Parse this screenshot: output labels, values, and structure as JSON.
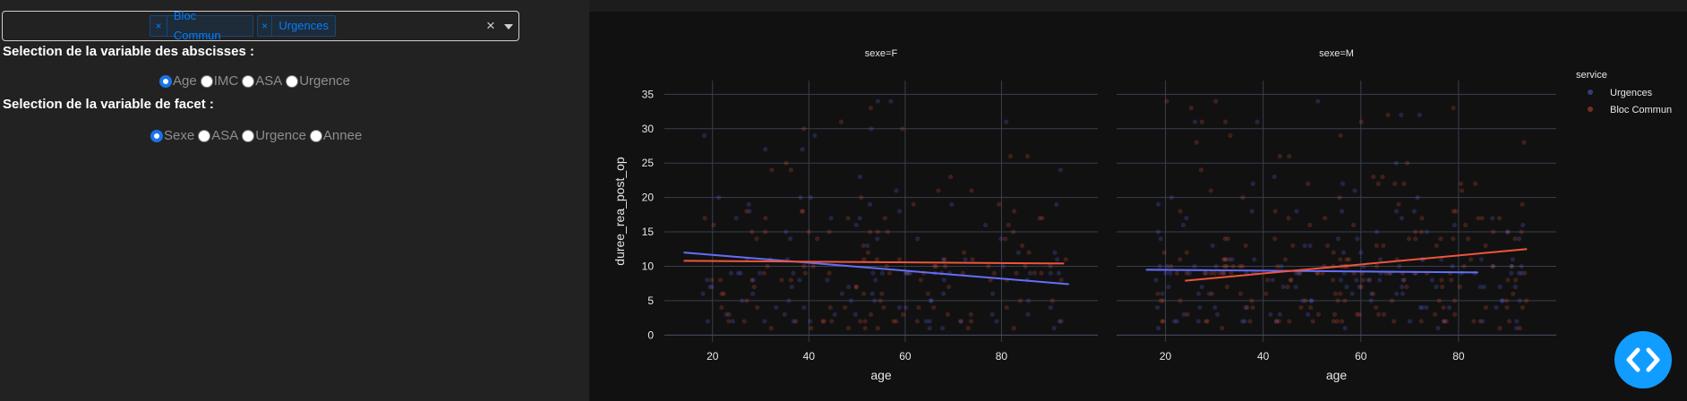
{
  "dropdown": {
    "selected": [
      {
        "label": "Bloc Commun",
        "remove": "×"
      },
      {
        "label": "Urgences",
        "remove": "×"
      }
    ],
    "clear": "×"
  },
  "abscissa": {
    "heading": "Selection de la variable des abscisses :",
    "options": [
      "Age",
      "IMC",
      "ASA",
      "Urgence"
    ],
    "selected": "Age"
  },
  "facet": {
    "heading": "Selection de la variable de facet :",
    "options": [
      "Sexe",
      "ASA",
      "Urgence",
      "Annee"
    ],
    "selected": "Sexe"
  },
  "colors": {
    "urgences": "#636efa",
    "bloc_commun": "#ef553b",
    "fab": "#119dff"
  },
  "chart_data": {
    "type": "scatter",
    "facets": [
      "sexe=F",
      "sexe=M"
    ],
    "xlabel": "age",
    "ylabel": "duree_rea_post_op",
    "xticks": [
      20,
      40,
      60,
      80
    ],
    "yticks": [
      0,
      5,
      10,
      15,
      20,
      25,
      30,
      35
    ],
    "xlim": [
      10,
      100
    ],
    "ylim": [
      -1,
      37
    ],
    "legend": {
      "title": "service",
      "items": [
        "Urgences",
        "Bloc Commun"
      ],
      "position": "top-right"
    },
    "trendlines": [
      {
        "facet": "sexe=F",
        "series": "Urgences",
        "x": [
          14,
          94
        ],
        "y": [
          12,
          7.4
        ]
      },
      {
        "facet": "sexe=F",
        "series": "Bloc Commun",
        "x": [
          14,
          93
        ],
        "y": [
          10.8,
          10.4
        ]
      },
      {
        "facet": "sexe=M",
        "series": "Urgences",
        "x": [
          16,
          84
        ],
        "y": [
          9.5,
          9.1
        ]
      },
      {
        "facet": "sexe=M",
        "series": "Bloc Commun",
        "x": [
          24,
          94
        ],
        "y": [
          7.9,
          12.5
        ]
      }
    ]
  }
}
